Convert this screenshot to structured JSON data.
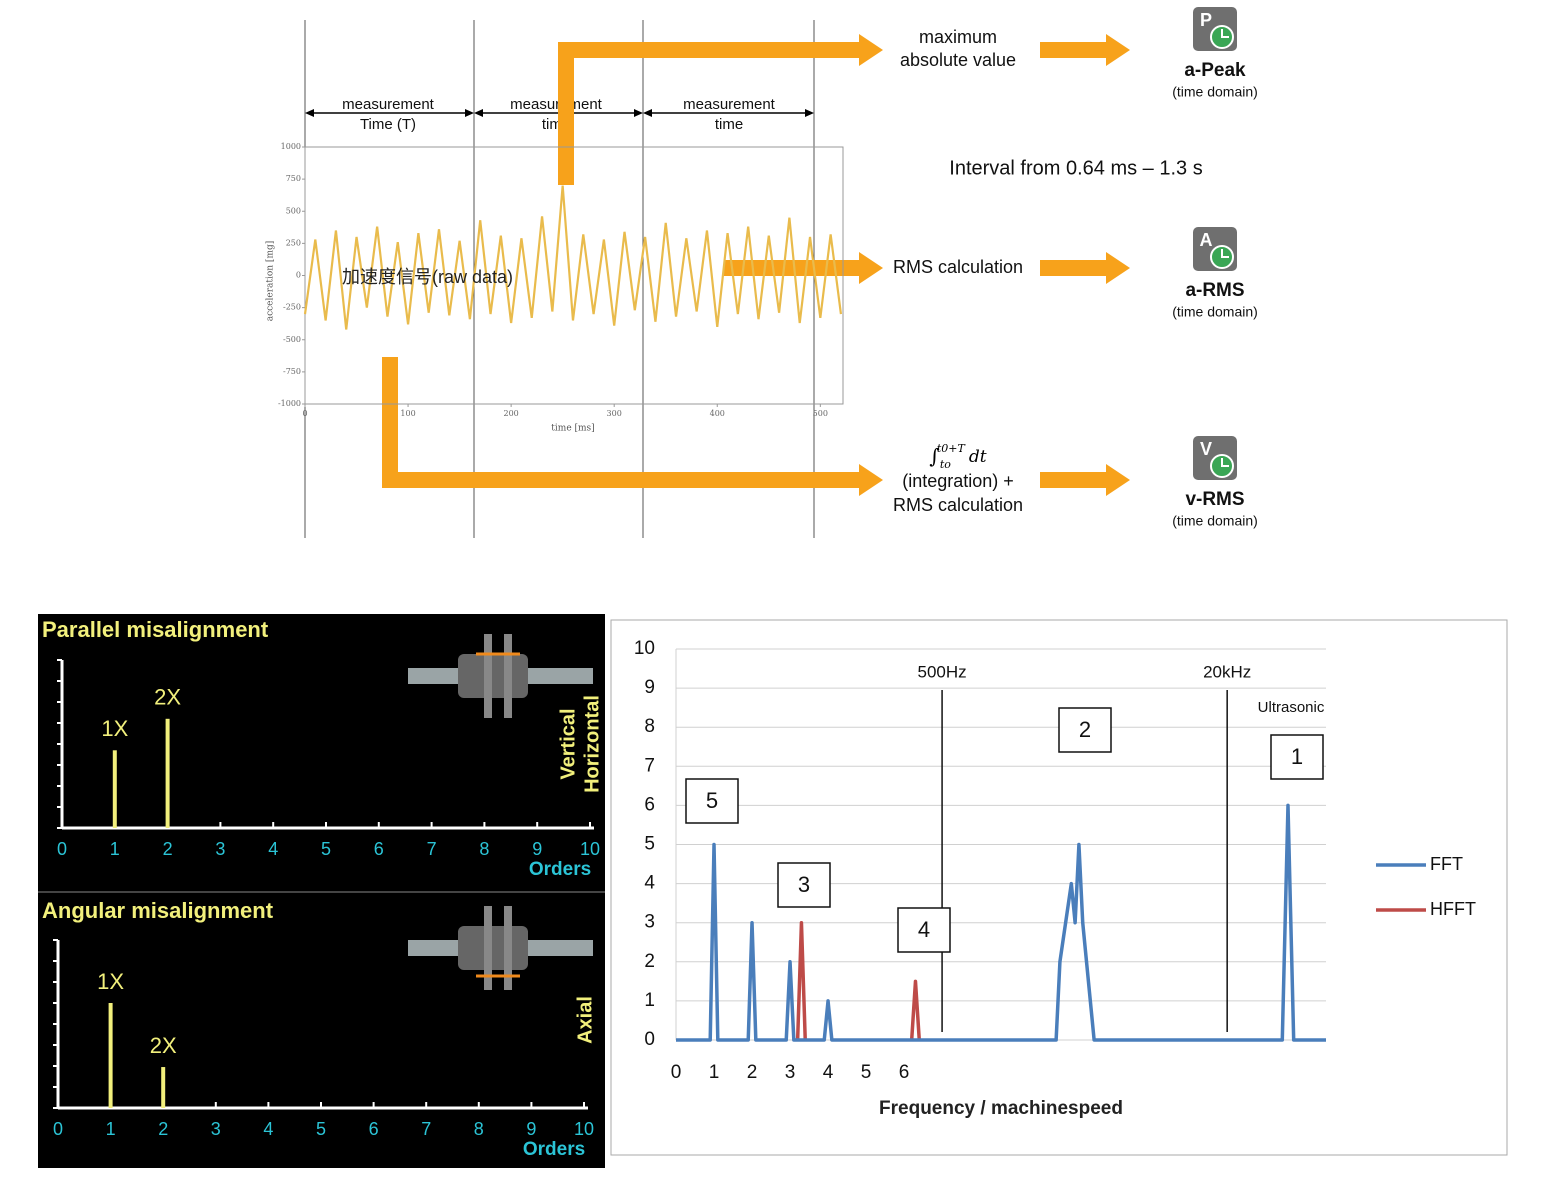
{
  "diagram": {
    "measurement_labels": [
      [
        "measurement",
        "Time (T)"
      ],
      [
        "measurement",
        "time"
      ],
      [
        "measurement",
        "time"
      ]
    ],
    "max_label": [
      "maximum",
      "absolute value"
    ],
    "interval": "Interval from 0.64 ms – 1.3 s",
    "rms_label": "RMS calculation",
    "integral": {
      "sign": "∫",
      "lower": "to",
      "upper": "t0+T",
      "tail": "dt"
    },
    "integration_label": [
      "(integration) +",
      "RMS calculation"
    ],
    "outputs": [
      {
        "icon": "P",
        "name": "a-Peak",
        "domain": "(time domain)"
      },
      {
        "icon": "A",
        "name": "a-RMS",
        "domain": "(time domain)"
      },
      {
        "icon": "V",
        "name": "v-RMS",
        "domain": "(time domain)"
      }
    ]
  },
  "chart_data": [
    {
      "type": "line",
      "annotation": "加速度信号(raw data)",
      "y_label": "acceleration [mg]",
      "x_label": "time [ms]",
      "color": "#e9bb4c",
      "xlim": [
        0,
        522
      ],
      "xticks": [
        0,
        100,
        200,
        300,
        400,
        500
      ],
      "ylim": [
        -1000,
        1000
      ],
      "yticks": [
        1000,
        750,
        500,
        250,
        0,
        -250,
        -500,
        -750,
        -1000
      ],
      "x": [
        0,
        10,
        20,
        30,
        40,
        50,
        60,
        70,
        80,
        90,
        100,
        110,
        120,
        130,
        140,
        150,
        160,
        170,
        180,
        190,
        200,
        210,
        220,
        230,
        240,
        250,
        260,
        270,
        280,
        290,
        300,
        310,
        320,
        330,
        340,
        350,
        360,
        370,
        380,
        390,
        400,
        410,
        420,
        430,
        440,
        450,
        460,
        470,
        480,
        490,
        500,
        510,
        520
      ],
      "values": [
        -300,
        280,
        -350,
        350,
        -420,
        300,
        -250,
        380,
        -320,
        260,
        -380,
        330,
        -290,
        360,
        -310,
        270,
        -340,
        430,
        -300,
        310,
        -370,
        290,
        -330,
        460,
        -280,
        700,
        -350,
        320,
        -300,
        280,
        -390,
        340,
        -270,
        300,
        -360,
        410,
        -320,
        290,
        -280,
        350,
        -400,
        330,
        -300,
        380,
        -340,
        310,
        -290,
        450,
        -370,
        300,
        -330,
        320,
        -300
      ]
    },
    {
      "type": "bar",
      "title": "Parallel misalignment",
      "x_label": "Orders",
      "side_labels": [
        "Vertical",
        "Horizontal"
      ],
      "color": "#f2f07c",
      "xlim": [
        0,
        10
      ],
      "xticks": [
        0,
        1,
        2,
        3,
        4,
        5,
        6,
        7,
        8,
        9,
        10
      ],
      "ylim": [
        0,
        8
      ],
      "yticks": [
        0,
        1,
        2,
        3,
        4,
        5,
        6,
        7,
        8
      ],
      "x": [
        1,
        2
      ],
      "values": [
        3.7,
        5.2
      ],
      "labels": [
        "1X",
        "2X"
      ]
    },
    {
      "type": "bar",
      "title": "Angular misalignment",
      "x_label": "Orders",
      "side_labels": [
        "Axial"
      ],
      "color": "#f2f07c",
      "xlim": [
        0,
        10
      ],
      "xticks": [
        0,
        1,
        2,
        3,
        4,
        5,
        6,
        7,
        8,
        9,
        10
      ],
      "ylim": [
        0,
        8
      ],
      "yticks": [
        0,
        1,
        2,
        3,
        4,
        5,
        6,
        7,
        8
      ],
      "x": [
        1,
        2
      ],
      "values": [
        5.0,
        1.95
      ],
      "labels": [
        "1X",
        "2X"
      ]
    },
    {
      "type": "spectrum",
      "x_label": "Frequency / machinespeed",
      "grid": true,
      "xlim": [
        0,
        17.1
      ],
      "xticks": [
        0,
        1,
        2,
        3,
        4,
        5,
        6
      ],
      "ylim": [
        0,
        10
      ],
      "yticks": [
        0,
        1,
        2,
        3,
        4,
        5,
        6,
        7,
        8,
        9,
        10
      ],
      "markers": [
        {
          "x": 7,
          "label": "500Hz"
        },
        {
          "x": 14.5,
          "label": "20kHz"
        }
      ],
      "region_label": "Ultrasonic",
      "boxes": [
        "5",
        "3",
        "4",
        "2",
        "1"
      ],
      "series": [
        {
          "name": "FFT",
          "color": "#4a7ebb",
          "x": [
            0,
            0.9,
            1,
            1.1,
            1.9,
            2,
            2.1,
            2.9,
            3,
            3.1,
            3.9,
            4,
            4.1,
            10,
            10.1,
            10.25,
            10.4,
            10.5,
            10.6,
            10.7,
            10.8,
            10.9,
            11,
            15.95,
            16.1,
            16.25,
            17.1
          ],
          "values": [
            0,
            0,
            5,
            0,
            0,
            3,
            0,
            0,
            2,
            0,
            0,
            1,
            0,
            0,
            2,
            3,
            4,
            3,
            5,
            3,
            2,
            1,
            0,
            0,
            6,
            0,
            0
          ]
        },
        {
          "name": "HFFT",
          "color": "#be4b48",
          "x": [
            3.2,
            3.3,
            3.4,
            null,
            6.2,
            6.3,
            6.4
          ],
          "values": [
            0,
            3,
            0,
            null,
            0,
            1.5,
            0
          ]
        }
      ]
    }
  ]
}
